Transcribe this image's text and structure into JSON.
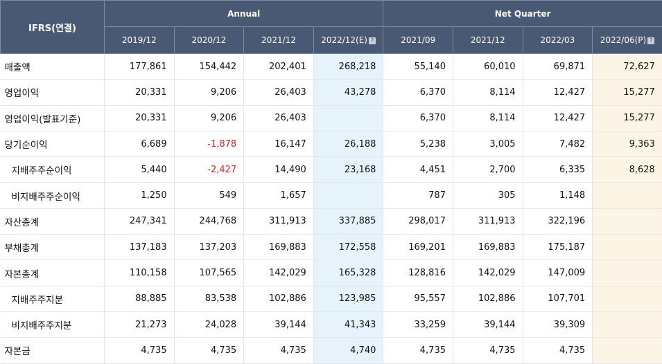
{
  "header": {
    "corner": "IFRS(연결)",
    "annual": "Annual",
    "quarter": "Net Quarter",
    "periods": [
      "2019/12",
      "2020/12",
      "2021/12",
      "2022/12(E)",
      "2021/09",
      "2021/12",
      "2022/03",
      "2022/06(P)"
    ],
    "help_mark": "?"
  },
  "rows": [
    {
      "label": "매출액",
      "sub": false,
      "values": [
        "177,861",
        "154,442",
        "202,401",
        "268,218",
        "55,140",
        "60,010",
        "69,871",
        "72,627"
      ]
    },
    {
      "label": "영업이익",
      "sub": false,
      "values": [
        "20,331",
        "9,206",
        "26,403",
        "43,278",
        "6,370",
        "8,114",
        "12,427",
        "15,277"
      ]
    },
    {
      "label": "영업이익(발표기준)",
      "sub": false,
      "values": [
        "20,331",
        "9,206",
        "26,403",
        "",
        "6,370",
        "8,114",
        "12,427",
        "15,277"
      ]
    },
    {
      "label": "당기순이익",
      "sub": false,
      "values": [
        "6,689",
        "-1,878",
        "16,147",
        "26,188",
        "5,238",
        "3,005",
        "7,482",
        "9,363"
      ]
    },
    {
      "label": "지배주주순이익",
      "sub": true,
      "values": [
        "5,440",
        "-2,427",
        "14,490",
        "23,168",
        "4,451",
        "2,700",
        "6,335",
        "8,628"
      ]
    },
    {
      "label": "비지배주주순이익",
      "sub": true,
      "values": [
        "1,250",
        "549",
        "1,657",
        "",
        "787",
        "305",
        "1,148",
        ""
      ]
    },
    {
      "label": "자산총계",
      "sub": false,
      "values": [
        "247,341",
        "244,768",
        "311,913",
        "337,885",
        "298,017",
        "311,913",
        "322,196",
        ""
      ]
    },
    {
      "label": "부채총계",
      "sub": false,
      "values": [
        "137,183",
        "137,203",
        "169,883",
        "172,558",
        "169,201",
        "169,883",
        "175,187",
        ""
      ]
    },
    {
      "label": "자본총계",
      "sub": false,
      "values": [
        "110,158",
        "107,565",
        "142,029",
        "165,328",
        "128,816",
        "142,029",
        "147,009",
        ""
      ]
    },
    {
      "label": "지배주주지분",
      "sub": true,
      "values": [
        "88,885",
        "83,538",
        "102,886",
        "123,985",
        "95,557",
        "102,886",
        "107,701",
        ""
      ]
    },
    {
      "label": "비지배주주지분",
      "sub": true,
      "values": [
        "21,273",
        "24,028",
        "39,144",
        "41,343",
        "33,259",
        "39,144",
        "39,309",
        ""
      ]
    },
    {
      "label": "자본금",
      "sub": false,
      "values": [
        "4,735",
        "4,735",
        "4,735",
        "4,740",
        "4,735",
        "4,735",
        "4,735",
        ""
      ]
    }
  ],
  "colors": {
    "header_bg": "#4a5973",
    "estimate_bg": "#e6f3fa",
    "provisional_bg": "#fcf5e6",
    "negative": "#e0201f"
  }
}
